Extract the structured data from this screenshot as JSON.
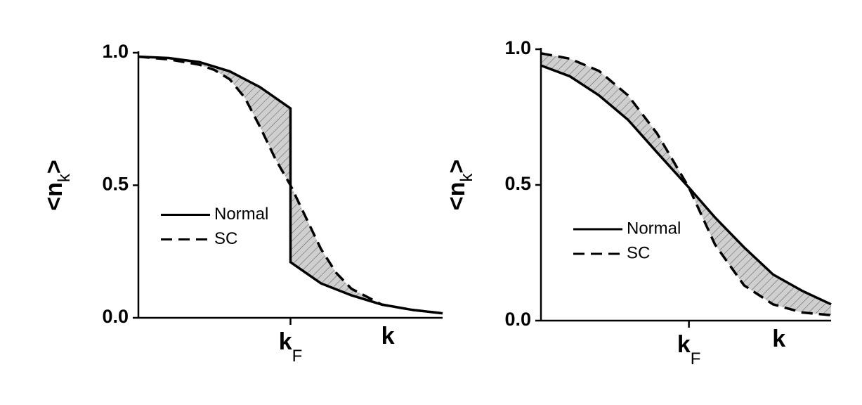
{
  "chart_data": [
    {
      "type": "line",
      "xlabel": "k",
      "ylabel": {
        "text": "<n",
        "sub": "k",
        "end": ">"
      },
      "xlim": [
        0,
        1
      ],
      "ylim": [
        0,
        1
      ],
      "xticks": [
        {
          "value": 0.5,
          "label": "k",
          "sub": "F"
        }
      ],
      "yticks": [
        {
          "value": 0,
          "label": "0.0"
        },
        {
          "value": 0.5,
          "label": "0.5"
        },
        {
          "value": 1,
          "label": "1.0"
        }
      ],
      "legend": "center-left",
      "shade": true,
      "series": [
        {
          "name": "Normal",
          "color": "#000000",
          "style": "solid",
          "x": [
            0,
            0.1,
            0.2,
            0.3,
            0.4,
            0.5,
            0.5,
            0.6,
            0.7,
            0.8,
            0.9,
            1.0
          ],
          "values": [
            0.985,
            0.98,
            0.965,
            0.93,
            0.87,
            0.79,
            0.21,
            0.13,
            0.085,
            0.05,
            0.03,
            0.017
          ]
        },
        {
          "name": "SC",
          "color": "#000000",
          "style": "dashed",
          "x": [
            0,
            0.1,
            0.2,
            0.25,
            0.3,
            0.35,
            0.4,
            0.45,
            0.5,
            0.55,
            0.6,
            0.65,
            0.7,
            0.8,
            0.9,
            1.0
          ],
          "values": [
            0.985,
            0.975,
            0.955,
            0.935,
            0.9,
            0.83,
            0.72,
            0.6,
            0.5,
            0.38,
            0.26,
            0.17,
            0.11,
            0.05,
            0.03,
            0.017
          ]
        }
      ]
    },
    {
      "type": "line",
      "xlabel": "k",
      "ylabel": {
        "text": "<n",
        "sub": "k",
        "end": ">"
      },
      "xlim": [
        0,
        1
      ],
      "ylim": [
        0,
        1
      ],
      "xticks": [
        {
          "value": 0.51,
          "label": "k",
          "sub": "F"
        }
      ],
      "yticks": [
        {
          "value": 0,
          "label": "0.0"
        },
        {
          "value": 0.5,
          "label": "0.5"
        },
        {
          "value": 1,
          "label": "1.0"
        }
      ],
      "legend": "center-left",
      "shade": true,
      "series": [
        {
          "name": "Normal",
          "color": "#000000",
          "style": "solid",
          "x": [
            0,
            0.1,
            0.2,
            0.3,
            0.4,
            0.51,
            0.6,
            0.7,
            0.8,
            0.9,
            1.0
          ],
          "values": [
            0.94,
            0.9,
            0.83,
            0.74,
            0.62,
            0.49,
            0.38,
            0.27,
            0.17,
            0.11,
            0.06
          ]
        },
        {
          "name": "SC",
          "color": "#000000",
          "style": "dashed",
          "x": [
            0,
            0.1,
            0.2,
            0.3,
            0.4,
            0.51,
            0.6,
            0.7,
            0.8,
            0.9,
            1.0
          ],
          "values": [
            0.985,
            0.965,
            0.92,
            0.83,
            0.69,
            0.49,
            0.28,
            0.13,
            0.06,
            0.03,
            0.02
          ]
        }
      ]
    }
  ]
}
